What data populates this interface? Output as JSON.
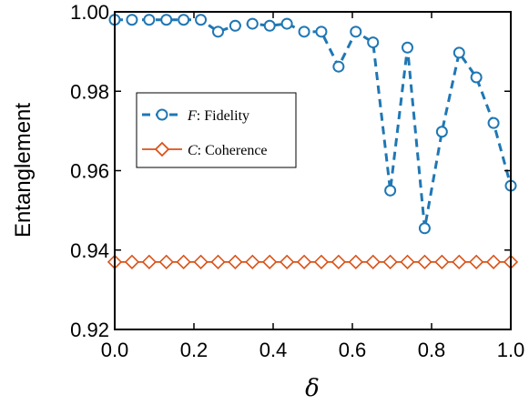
{
  "chart_data": {
    "type": "line",
    "xlabel": "δ",
    "ylabel": "Entanglement",
    "xlim": [
      0.0,
      1.0
    ],
    "ylim": [
      0.92,
      1.0
    ],
    "xticks": [
      "0.0",
      "0.2",
      "0.4",
      "0.6",
      "0.8",
      "1.0"
    ],
    "yticks": [
      "0.92",
      "0.94",
      "0.96",
      "0.98",
      "1.00"
    ],
    "grid": false,
    "legend_position": "upper-left",
    "series": [
      {
        "symbol": "F",
        "desc": ": Fidelity",
        "color": "#1f77b4",
        "marker": "circle",
        "line": "dashed",
        "x": [
          0.0,
          0.0435,
          0.087,
          0.1304,
          0.1739,
          0.2174,
          0.2609,
          0.3043,
          0.3478,
          0.3913,
          0.4348,
          0.4783,
          0.5217,
          0.5652,
          0.6087,
          0.6522,
          0.6957,
          0.7391,
          0.7826,
          0.8261,
          0.8696,
          0.913,
          0.9565,
          1.0
        ],
        "y": [
          0.998,
          0.998,
          0.998,
          0.998,
          0.998,
          0.998,
          0.995,
          0.9965,
          0.997,
          0.9965,
          0.997,
          0.995,
          0.995,
          0.9862,
          0.995,
          0.9923,
          0.955,
          0.991,
          0.9455,
          0.9698,
          0.9897,
          0.9835,
          0.972,
          0.9562
        ]
      },
      {
        "symbol": "C",
        "desc": ": Coherence",
        "color": "#d95319",
        "marker": "diamond",
        "line": "solid",
        "x": [
          0.0,
          0.0435,
          0.087,
          0.1304,
          0.1739,
          0.2174,
          0.2609,
          0.3043,
          0.3478,
          0.3913,
          0.4348,
          0.4783,
          0.5217,
          0.5652,
          0.6087,
          0.6522,
          0.6957,
          0.7391,
          0.7826,
          0.8261,
          0.8696,
          0.913,
          0.9565,
          1.0
        ],
        "y": [
          0.937,
          0.937,
          0.937,
          0.937,
          0.937,
          0.937,
          0.937,
          0.937,
          0.937,
          0.937,
          0.937,
          0.937,
          0.937,
          0.937,
          0.937,
          0.937,
          0.937,
          0.937,
          0.937,
          0.937,
          0.937,
          0.937,
          0.937,
          0.937
        ]
      }
    ]
  }
}
